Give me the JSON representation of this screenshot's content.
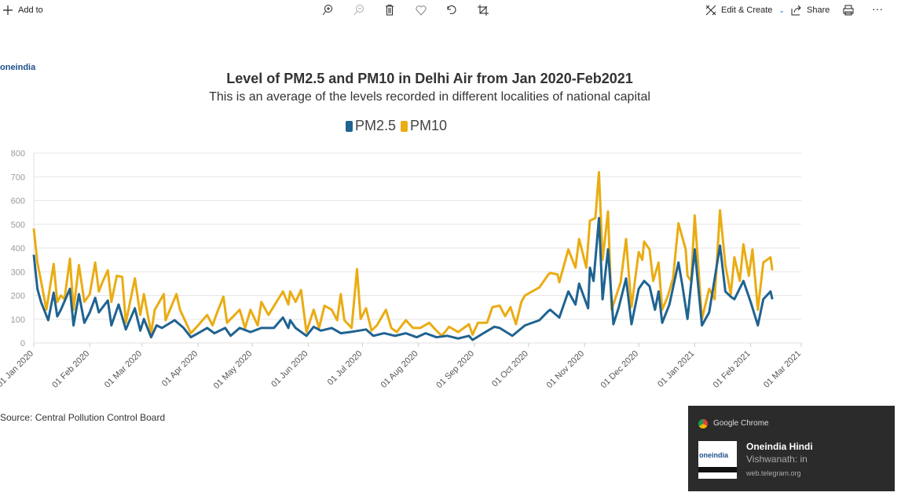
{
  "toolbar": {
    "add_to": "Add to",
    "edit_create": "Edit & Create",
    "share": "Share",
    "icons": [
      "plus-icon",
      "zoom-in-icon",
      "zoom-out-icon",
      "trash-icon",
      "heart-icon",
      "rotate-icon",
      "crop-icon",
      "edit-icon",
      "chevron-down-icon",
      "share-icon",
      "print-icon",
      "more-icon"
    ]
  },
  "image": {
    "logo": "oneindia",
    "source": "Source: Central Pollution Control Board"
  },
  "notification": {
    "app": "Google Chrome",
    "title": "Oneindia Hindi",
    "body": "Vishwanath: in",
    "site": "web.telegram.org",
    "thumb_logo": "oneindia"
  },
  "chart_data": {
    "type": "line",
    "title": "Level of PM2.5 and PM10 in Delhi Air from Jan 2020-Feb2021",
    "subtitle": "This is an average of the levels recorded in different localities of national capital",
    "legend_position": "top-center",
    "grid": true,
    "ylim": [
      0,
      800
    ],
    "yticks": [
      "0",
      "100",
      "200",
      "300",
      "400",
      "500",
      "600",
      "700",
      "800"
    ],
    "xlim": [
      "2020-01-01",
      "2021-03-01"
    ],
    "xticks": [
      {
        "date": "2020-01-01",
        "label": "01 Jan 2020"
      },
      {
        "date": "2020-02-01",
        "label": "01 Feb 2020"
      },
      {
        "date": "2020-03-01",
        "label": "01 Mar 2020"
      },
      {
        "date": "2020-04-01",
        "label": "01 Apr 2020"
      },
      {
        "date": "2020-05-01",
        "label": "01 May 2020"
      },
      {
        "date": "2020-06-01",
        "label": "01 Jun 2020"
      },
      {
        "date": "2020-07-01",
        "label": "01 Jul 2020"
      },
      {
        "date": "2020-08-01",
        "label": "01 Aug 2020"
      },
      {
        "date": "2020-09-01",
        "label": "01 Sep 2020"
      },
      {
        "date": "2020-10-01",
        "label": "01 Oct 2020"
      },
      {
        "date": "2020-11-01",
        "label": "01 Nov 2020"
      },
      {
        "date": "2020-12-01",
        "label": "01 Dec 2020"
      },
      {
        "date": "2021-01-01",
        "label": "01 Jan 2021"
      },
      {
        "date": "2021-02-01",
        "label": "01 Feb 2021"
      },
      {
        "date": "2021-03-01",
        "label": "01 Mar 2021"
      }
    ],
    "series": [
      {
        "name": "PM2.5",
        "color": "#1f6391",
        "points": [
          [
            "2020-01-01",
            372
          ],
          [
            "2020-01-03",
            228
          ],
          [
            "2020-01-05",
            173
          ],
          [
            "2020-01-09",
            96
          ],
          [
            "2020-01-12",
            212
          ],
          [
            "2020-01-14",
            112
          ],
          [
            "2020-01-16",
            140
          ],
          [
            "2020-01-21",
            228
          ],
          [
            "2020-01-23",
            74
          ],
          [
            "2020-01-26",
            206
          ],
          [
            "2020-01-29",
            85
          ],
          [
            "2020-02-01",
            129
          ],
          [
            "2020-02-04",
            190
          ],
          [
            "2020-02-06",
            129
          ],
          [
            "2020-02-11",
            179
          ],
          [
            "2020-02-13",
            74
          ],
          [
            "2020-02-17",
            162
          ],
          [
            "2020-02-21",
            57
          ],
          [
            "2020-02-26",
            146
          ],
          [
            "2020-02-29",
            52
          ],
          [
            "2020-03-02",
            101
          ],
          [
            "2020-03-06",
            24
          ],
          [
            "2020-03-09",
            74
          ],
          [
            "2020-03-12",
            63
          ],
          [
            "2020-03-19",
            96
          ],
          [
            "2020-03-24",
            63
          ],
          [
            "2020-03-28",
            24
          ],
          [
            "2020-04-01",
            41
          ],
          [
            "2020-04-06",
            63
          ],
          [
            "2020-04-10",
            41
          ],
          [
            "2020-04-16",
            63
          ],
          [
            "2020-04-19",
            30
          ],
          [
            "2020-04-24",
            63
          ],
          [
            "2020-04-30",
            46
          ],
          [
            "2020-05-06",
            63
          ],
          [
            "2020-05-13",
            63
          ],
          [
            "2020-05-18",
            107
          ],
          [
            "2020-05-21",
            63
          ],
          [
            "2020-05-22",
            96
          ],
          [
            "2020-05-25",
            63
          ],
          [
            "2020-05-31",
            30
          ],
          [
            "2020-06-04",
            68
          ],
          [
            "2020-06-08",
            52
          ],
          [
            "2020-06-14",
            63
          ],
          [
            "2020-06-19",
            41
          ],
          [
            "2020-06-24",
            46
          ],
          [
            "2020-06-29",
            52
          ],
          [
            "2020-07-03",
            57
          ],
          [
            "2020-07-07",
            30
          ],
          [
            "2020-07-13",
            41
          ],
          [
            "2020-07-19",
            30
          ],
          [
            "2020-07-25",
            41
          ],
          [
            "2020-07-31",
            24
          ],
          [
            "2020-08-05",
            41
          ],
          [
            "2020-08-11",
            24
          ],
          [
            "2020-08-17",
            30
          ],
          [
            "2020-08-23",
            19
          ],
          [
            "2020-08-29",
            30
          ],
          [
            "2020-08-31",
            13
          ],
          [
            "2020-09-06",
            41
          ],
          [
            "2020-09-12",
            68
          ],
          [
            "2020-09-15",
            63
          ],
          [
            "2020-09-22",
            30
          ],
          [
            "2020-09-29",
            74
          ],
          [
            "2020-10-07",
            96
          ],
          [
            "2020-10-12",
            135
          ],
          [
            "2020-10-13",
            140
          ],
          [
            "2020-10-18",
            107
          ],
          [
            "2020-10-23",
            217
          ],
          [
            "2020-10-27",
            162
          ],
          [
            "2020-10-29",
            250
          ],
          [
            "2020-11-03",
            146
          ],
          [
            "2020-11-04",
            317
          ],
          [
            "2020-11-06",
            261
          ],
          [
            "2020-11-09",
            526
          ],
          [
            "2020-11-11",
            184
          ],
          [
            "2020-11-14",
            394
          ],
          [
            "2020-11-17",
            79
          ],
          [
            "2020-11-20",
            151
          ],
          [
            "2020-11-24",
            272
          ],
          [
            "2020-11-27",
            79
          ],
          [
            "2020-12-01",
            228
          ],
          [
            "2020-12-04",
            261
          ],
          [
            "2020-12-07",
            239
          ],
          [
            "2020-12-10",
            140
          ],
          [
            "2020-12-12",
            217
          ],
          [
            "2020-12-14",
            85
          ],
          [
            "2020-12-18",
            162
          ],
          [
            "2020-12-23",
            339
          ],
          [
            "2020-12-25",
            250
          ],
          [
            "2020-12-28",
            101
          ],
          [
            "2021-01-01",
            394
          ],
          [
            "2021-01-05",
            74
          ],
          [
            "2021-01-09",
            129
          ],
          [
            "2021-01-15",
            410
          ],
          [
            "2021-01-18",
            217
          ],
          [
            "2021-01-21",
            195
          ],
          [
            "2021-01-23",
            184
          ],
          [
            "2021-01-28",
            261
          ],
          [
            "2021-02-01",
            173
          ],
          [
            "2021-02-05",
            74
          ],
          [
            "2021-02-08",
            184
          ],
          [
            "2021-02-12",
            217
          ],
          [
            "2021-02-13",
            184
          ]
        ]
      },
      {
        "name": "PM10",
        "color": "#eaac13",
        "points": [
          [
            "2020-01-01",
            482
          ],
          [
            "2020-01-03",
            339
          ],
          [
            "2020-01-05",
            261
          ],
          [
            "2020-01-08",
            140
          ],
          [
            "2020-01-12",
            333
          ],
          [
            "2020-01-14",
            173
          ],
          [
            "2020-01-16",
            200
          ],
          [
            "2020-01-18",
            184
          ],
          [
            "2020-01-21",
            355
          ],
          [
            "2020-01-23",
            140
          ],
          [
            "2020-01-26",
            328
          ],
          [
            "2020-01-29",
            173
          ],
          [
            "2020-02-01",
            206
          ],
          [
            "2020-02-04",
            339
          ],
          [
            "2020-02-06",
            217
          ],
          [
            "2020-02-08",
            256
          ],
          [
            "2020-02-11",
            306
          ],
          [
            "2020-02-13",
            173
          ],
          [
            "2020-02-16",
            283
          ],
          [
            "2020-02-19",
            278
          ],
          [
            "2020-02-21",
            85
          ],
          [
            "2020-02-26",
            272
          ],
          [
            "2020-02-29",
            118
          ],
          [
            "2020-03-02",
            206
          ],
          [
            "2020-03-06",
            41
          ],
          [
            "2020-03-08",
            140
          ],
          [
            "2020-03-13",
            206
          ],
          [
            "2020-03-14",
            96
          ],
          [
            "2020-03-20",
            206
          ],
          [
            "2020-03-22",
            140
          ],
          [
            "2020-03-28",
            41
          ],
          [
            "2020-04-01",
            74
          ],
          [
            "2020-04-06",
            118
          ],
          [
            "2020-04-09",
            74
          ],
          [
            "2020-04-11",
            118
          ],
          [
            "2020-04-15",
            195
          ],
          [
            "2020-04-17",
            85
          ],
          [
            "2020-04-24",
            140
          ],
          [
            "2020-04-27",
            63
          ],
          [
            "2020-04-30",
            140
          ],
          [
            "2020-05-04",
            74
          ],
          [
            "2020-05-06",
            173
          ],
          [
            "2020-05-10",
            118
          ],
          [
            "2020-05-18",
            217
          ],
          [
            "2020-05-21",
            162
          ],
          [
            "2020-05-22",
            217
          ],
          [
            "2020-05-25",
            173
          ],
          [
            "2020-05-28",
            223
          ],
          [
            "2020-05-31",
            46
          ],
          [
            "2020-06-04",
            140
          ],
          [
            "2020-06-07",
            63
          ],
          [
            "2020-06-10",
            157
          ],
          [
            "2020-06-14",
            140
          ],
          [
            "2020-06-17",
            96
          ],
          [
            "2020-06-19",
            206
          ],
          [
            "2020-06-21",
            96
          ],
          [
            "2020-06-25",
            63
          ],
          [
            "2020-06-28",
            311
          ],
          [
            "2020-06-30",
            101
          ],
          [
            "2020-07-03",
            146
          ],
          [
            "2020-07-06",
            52
          ],
          [
            "2020-07-09",
            74
          ],
          [
            "2020-07-14",
            140
          ],
          [
            "2020-07-17",
            63
          ],
          [
            "2020-07-20",
            46
          ],
          [
            "2020-07-25",
            96
          ],
          [
            "2020-07-29",
            63
          ],
          [
            "2020-08-02",
            63
          ],
          [
            "2020-08-07",
            85
          ],
          [
            "2020-08-11",
            52
          ],
          [
            "2020-08-14",
            30
          ],
          [
            "2020-08-18",
            68
          ],
          [
            "2020-08-23",
            46
          ],
          [
            "2020-08-29",
            79
          ],
          [
            "2020-08-31",
            35
          ],
          [
            "2020-09-03",
            85
          ],
          [
            "2020-09-08",
            85
          ],
          [
            "2020-09-11",
            151
          ],
          [
            "2020-09-15",
            157
          ],
          [
            "2020-09-18",
            113
          ],
          [
            "2020-09-21",
            151
          ],
          [
            "2020-09-24",
            79
          ],
          [
            "2020-09-27",
            173
          ],
          [
            "2020-09-29",
            200
          ],
          [
            "2020-10-07",
            234
          ],
          [
            "2020-10-12",
            289
          ],
          [
            "2020-10-13",
            295
          ],
          [
            "2020-10-17",
            289
          ],
          [
            "2020-10-18",
            256
          ],
          [
            "2020-10-23",
            394
          ],
          [
            "2020-10-27",
            317
          ],
          [
            "2020-10-29",
            438
          ],
          [
            "2020-11-02",
            317
          ],
          [
            "2020-11-04",
            515
          ],
          [
            "2020-11-07",
            526
          ],
          [
            "2020-11-09",
            719
          ],
          [
            "2020-11-11",
            350
          ],
          [
            "2020-11-14",
            554
          ],
          [
            "2020-11-16",
            140
          ],
          [
            "2020-11-21",
            256
          ],
          [
            "2020-11-24",
            438
          ],
          [
            "2020-11-27",
            151
          ],
          [
            "2020-12-01",
            383
          ],
          [
            "2020-12-03",
            350
          ],
          [
            "2020-12-04",
            427
          ],
          [
            "2020-12-07",
            394
          ],
          [
            "2020-12-09",
            261
          ],
          [
            "2020-12-12",
            339
          ],
          [
            "2020-12-14",
            140
          ],
          [
            "2020-12-17",
            195
          ],
          [
            "2020-12-20",
            272
          ],
          [
            "2020-12-23",
            504
          ],
          [
            "2020-12-27",
            394
          ],
          [
            "2020-12-28",
            283
          ],
          [
            "2020-12-30",
            261
          ],
          [
            "2021-01-01",
            537
          ],
          [
            "2021-01-05",
            101
          ],
          [
            "2021-01-09",
            228
          ],
          [
            "2021-01-12",
            184
          ],
          [
            "2021-01-15",
            559
          ],
          [
            "2021-01-18",
            328
          ],
          [
            "2021-01-21",
            206
          ],
          [
            "2021-01-23",
            361
          ],
          [
            "2021-01-26",
            261
          ],
          [
            "2021-01-28",
            416
          ],
          [
            "2021-01-31",
            283
          ],
          [
            "2021-02-02",
            394
          ],
          [
            "2021-02-05",
            140
          ],
          [
            "2021-02-08",
            339
          ],
          [
            "2021-02-12",
            361
          ],
          [
            "2021-02-13",
            306
          ]
        ]
      }
    ]
  }
}
